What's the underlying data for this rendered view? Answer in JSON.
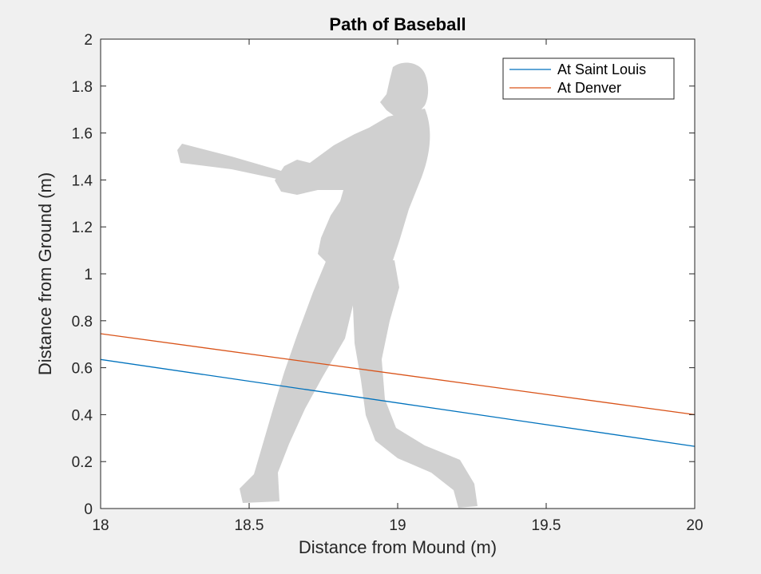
{
  "chart_data": {
    "type": "line",
    "title": "Path of Baseball",
    "xlabel": "Distance from Mound (m)",
    "ylabel": "Distance from Ground (m)",
    "xlim": [
      18,
      20
    ],
    "ylim": [
      0,
      2
    ],
    "xticks": [
      18,
      18.5,
      19,
      19.5,
      20
    ],
    "xtick_labels": [
      "18",
      "18.5",
      "19",
      "19.5",
      "20"
    ],
    "yticks": [
      0,
      0.2,
      0.4,
      0.6,
      0.8,
      1,
      1.2,
      1.4,
      1.6,
      1.8,
      2
    ],
    "ytick_labels": [
      "0",
      "0.2",
      "0.4",
      "0.6",
      "0.8",
      "1",
      "1.2",
      "1.4",
      "1.6",
      "1.8",
      "2"
    ],
    "grid": false,
    "legend_position": "top-right",
    "background_image": "batter-silhouette",
    "series": [
      {
        "name": "At Saint Louis",
        "color": "#0072bd",
        "x": [
          18,
          20
        ],
        "y": [
          0.635,
          0.265
        ]
      },
      {
        "name": "At Denver",
        "color": "#d95319",
        "x": [
          18,
          20
        ],
        "y": [
          0.745,
          0.4
        ]
      }
    ]
  }
}
